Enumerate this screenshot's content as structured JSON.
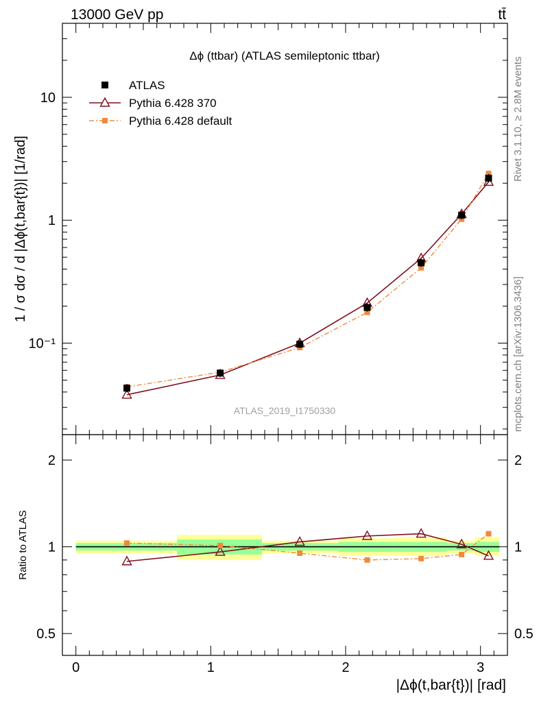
{
  "header": {
    "left": "13000 GeV pp",
    "right": "tt̄"
  },
  "side_text": {
    "rivet": "Rivet 3.1.10, ≥ 2.8M events",
    "mcplots": "mcplots.cern.ch [arXiv:1306.3436]"
  },
  "chart_data": [
    {
      "type": "line",
      "panel": "main",
      "title": "Δϕ (ttbar) (ATLAS semileptonic ttbar)",
      "watermark": "ATLAS_2019_I1750330",
      "ylabel": "1 / σ dσ / d |Δϕ(t,bar{t})| [1/rad]",
      "yscale": "log",
      "ylim": [
        0.018,
        40
      ],
      "xlim": [
        -0.1,
        3.2
      ],
      "yticks": [
        {
          "value": 10,
          "label": "10"
        },
        {
          "value": 1,
          "label": "1"
        },
        {
          "value": 0.1,
          "label": "10⁻¹"
        }
      ],
      "legend_position": "top-left",
      "series": [
        {
          "name": "ATLAS",
          "style": "data",
          "x": [
            0.378,
            1.07,
            1.66,
            2.16,
            2.56,
            2.86,
            3.06
          ],
          "y": [
            0.043,
            0.057,
            0.098,
            0.195,
            0.45,
            1.1,
            2.2
          ],
          "color": "#000000"
        },
        {
          "name": "Pythia 6.428 370",
          "style": "solid-triangle",
          "x": [
            0.378,
            1.07,
            1.66,
            2.16,
            2.56,
            2.86,
            3.06
          ],
          "y": [
            0.038,
            0.055,
            0.1,
            0.212,
            0.49,
            1.12,
            2.05
          ],
          "color": "#7f0f1e"
        },
        {
          "name": "Pythia 6.428 default",
          "style": "dashdot-square",
          "x": [
            0.378,
            1.07,
            1.66,
            2.16,
            2.56,
            2.86,
            3.06
          ],
          "y": [
            0.044,
            0.058,
            0.092,
            0.178,
            0.41,
            1.02,
            2.4
          ],
          "color": "#f08a3a"
        }
      ]
    },
    {
      "type": "line",
      "panel": "ratio",
      "ylabel": "Ratio to ATLAS",
      "xlabel": "|Δϕ(t,bar{t})| [rad]",
      "yscale": "log",
      "ylim": [
        0.42,
        2.45
      ],
      "xlim": [
        -0.1,
        3.2
      ],
      "yticks": [
        {
          "value": 2,
          "label": "2"
        },
        {
          "value": 1,
          "label": "1"
        },
        {
          "value": 0.5,
          "label": "0.5"
        }
      ],
      "xticks": [
        {
          "value": 0,
          "label": "0"
        },
        {
          "value": 1,
          "label": "1"
        },
        {
          "value": 2,
          "label": "2"
        },
        {
          "value": 3,
          "label": "3"
        }
      ],
      "bins": [
        {
          "lo": 0.0,
          "hi": 0.75,
          "stat": [
            0.97,
            1.03
          ],
          "total": [
            0.95,
            1.05
          ]
        },
        {
          "lo": 0.75,
          "hi": 1.38,
          "stat": [
            0.94,
            1.06
          ],
          "total": [
            0.9,
            1.1
          ]
        },
        {
          "lo": 1.38,
          "hi": 1.95,
          "stat": [
            0.97,
            1.03
          ],
          "total": [
            0.95,
            1.05
          ]
        },
        {
          "lo": 1.95,
          "hi": 2.36,
          "stat": [
            0.96,
            1.04
          ],
          "total": [
            0.93,
            1.07
          ]
        },
        {
          "lo": 2.36,
          "hi": 2.75,
          "stat": [
            0.96,
            1.04
          ],
          "total": [
            0.93,
            1.08
          ]
        },
        {
          "lo": 2.75,
          "hi": 2.96,
          "stat": [
            0.97,
            1.03
          ],
          "total": [
            0.95,
            1.05
          ]
        },
        {
          "lo": 2.96,
          "hi": 3.14,
          "stat": [
            0.96,
            1.04
          ],
          "total": [
            0.93,
            1.08
          ]
        }
      ],
      "series": [
        {
          "name": "Pythia 6.428 370",
          "x": [
            0.378,
            1.07,
            1.66,
            2.16,
            2.56,
            2.86,
            3.06
          ],
          "y": [
            0.89,
            0.96,
            1.04,
            1.09,
            1.11,
            1.02,
            0.93
          ],
          "color": "#7f0f1e"
        },
        {
          "name": "Pythia 6.428 default",
          "x": [
            0.378,
            1.07,
            1.66,
            2.16,
            2.56,
            2.86,
            3.06
          ],
          "y": [
            1.03,
            1.01,
            0.95,
            0.9,
            0.91,
            0.94,
            1.11
          ],
          "color": "#f08a3a"
        }
      ]
    }
  ]
}
